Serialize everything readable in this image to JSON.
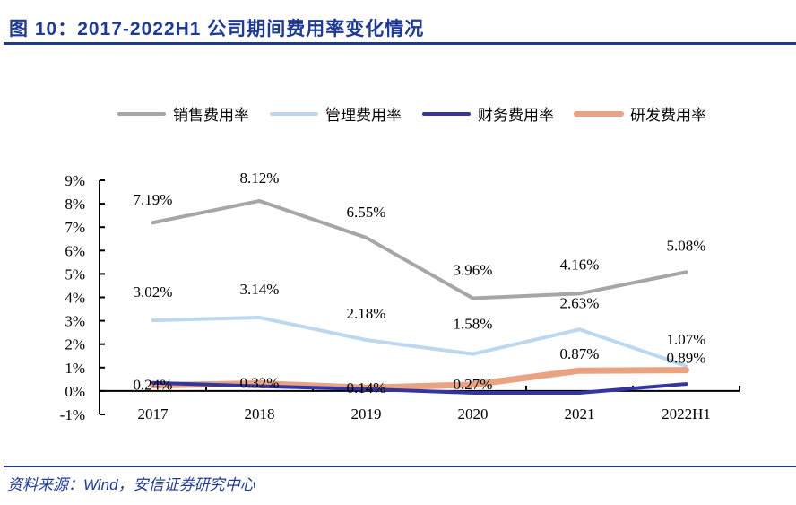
{
  "header": {
    "title": "图 10：2017-2022H1 公司期间费用率变化情况"
  },
  "footer": {
    "source": "资料来源：Wind，安信证券研究中心"
  },
  "chart_data": {
    "type": "line",
    "title": "2017-2022H1 公司期间费用率变化情况",
    "xlabel": "",
    "ylabel": "",
    "categories": [
      "2017",
      "2018",
      "2019",
      "2020",
      "2021",
      "2022H1"
    ],
    "ylim": [
      -1,
      9
    ],
    "yticks": [
      "-1%",
      "0%",
      "1%",
      "2%",
      "3%",
      "4%",
      "5%",
      "6%",
      "7%",
      "8%",
      "9%"
    ],
    "ytick_values": [
      -1,
      0,
      1,
      2,
      3,
      4,
      5,
      6,
      7,
      8,
      9
    ],
    "grid": false,
    "legend_position": "top",
    "series": [
      {
        "name": "销售费用率",
        "color": "#a6a6a6",
        "values": [
          7.19,
          8.12,
          6.55,
          3.96,
          4.16,
          5.08
        ],
        "labels": [
          "7.19%",
          "8.12%",
          "6.55%",
          "3.96%",
          "4.16%",
          "5.08%"
        ]
      },
      {
        "name": "管理费用率",
        "color": "#bdd7ee",
        "values": [
          3.02,
          3.14,
          2.18,
          1.58,
          2.63,
          1.07
        ],
        "labels": [
          "3.02%",
          "3.14%",
          "2.18%",
          "1.58%",
          "2.63%",
          "1.07%"
        ]
      },
      {
        "name": "财务费用率",
        "color": "#3535a0",
        "values": [
          0.35,
          0.2,
          0.08,
          -0.08,
          -0.08,
          0.3
        ],
        "labels": []
      },
      {
        "name": "研发费用率",
        "color": "#e9a282",
        "values": [
          0.24,
          0.32,
          0.14,
          0.27,
          0.87,
          0.89
        ],
        "labels": [
          "0.24%",
          "0.32%",
          "0.14%",
          "0.27%",
          "0.87%",
          "0.89%"
        ]
      }
    ]
  }
}
